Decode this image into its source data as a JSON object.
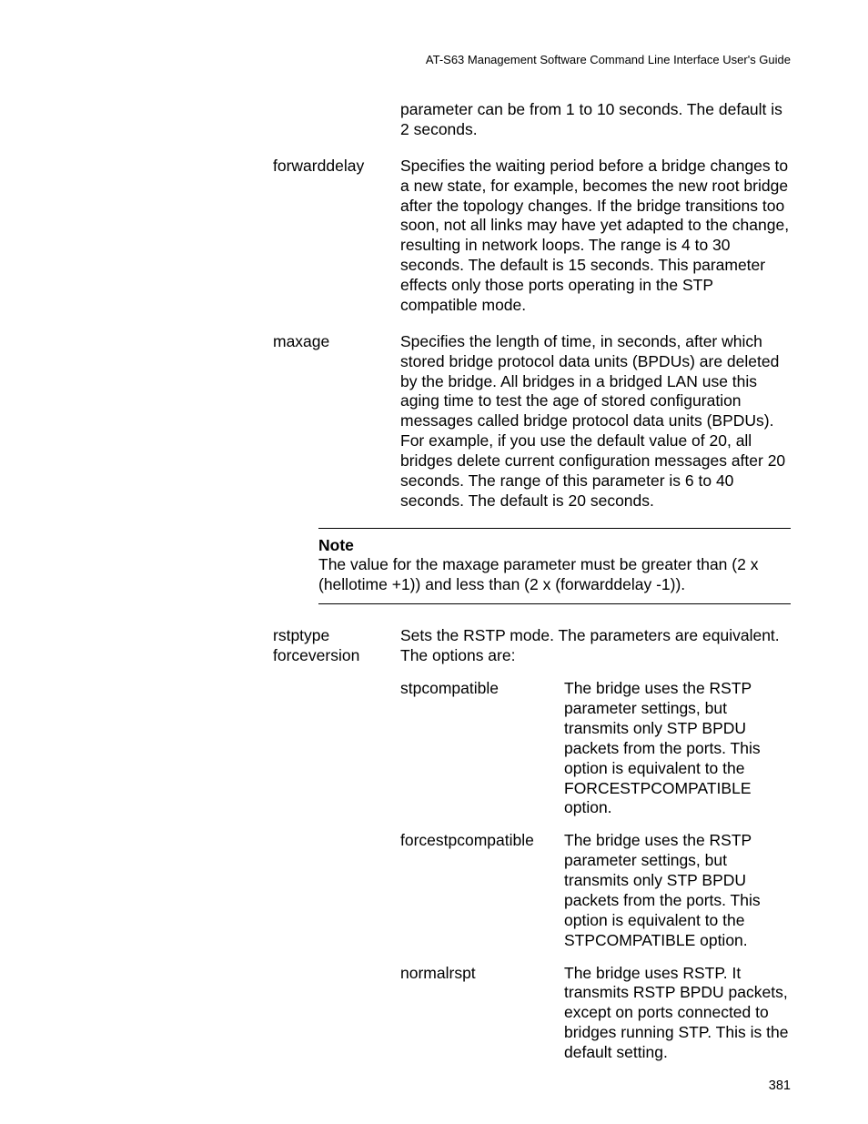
{
  "header": "AT-S63 Management Software Command Line Interface User's Guide",
  "intro_desc": "parameter can be from 1 to 10 seconds. The default is 2 seconds.",
  "params": {
    "forwarddelay": {
      "name": "forwarddelay",
      "desc": "Specifies the waiting period before a bridge changes to a new state, for example, becomes the new root bridge after the topology changes. If the bridge transitions too soon, not all links may have yet adapted to the change, resulting in network loops. The range is 4 to 30 seconds. The default is 15 seconds. This parameter effects only those ports operating in the STP compatible mode."
    },
    "maxage": {
      "name": "maxage",
      "desc": "Specifies the length of time, in seconds, after which stored bridge protocol data units (BPDUs) are deleted by the bridge. All bridges in a bridged LAN use this aging time to test the age of stored configuration messages called bridge protocol data units (BPDUs). For example, if you use the default value of 20, all bridges delete current configuration messages after 20 seconds. The range of this parameter is 6 to 40 seconds. The default is 20 seconds."
    },
    "rstptype": {
      "name": "rstptype forceversion",
      "desc": "Sets the RSTP mode. The parameters are equivalent. The options are:",
      "subs": {
        "stpcompatible": {
          "name": "stpcompatible",
          "desc": "The bridge uses the RSTP parameter settings, but transmits only STP BPDU packets from the ports. This option is equivalent to the FORCESTPCOMPATIBLE option."
        },
        "forcestpcompatible": {
          "name": "forcestpcompatible",
          "desc": "The bridge uses the RSTP parameter settings, but transmits only STP BPDU packets from the ports. This option is equivalent to the STPCOMPATIBLE option."
        },
        "normalrspt": {
          "name": "normalrspt",
          "desc": "The bridge uses RSTP. It transmits RSTP BPDU packets, except on ports connected to bridges running STP. This is the default setting."
        }
      }
    }
  },
  "note": {
    "title": "Note",
    "body": "The value for the maxage parameter must be greater than (2 x (hellotime +1)) and less than (2 x (forwarddelay -1))."
  },
  "page_number": "381"
}
